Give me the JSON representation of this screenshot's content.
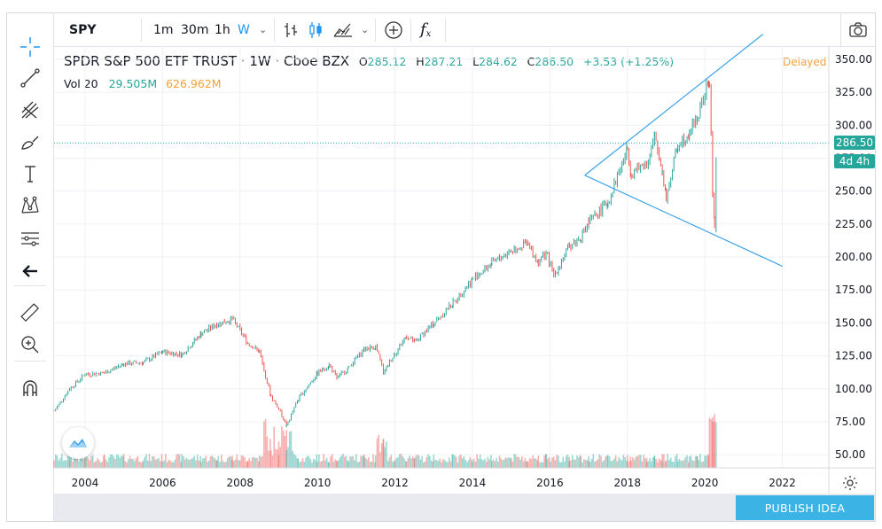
{
  "toolbar": {
    "symbol": "SPY",
    "intervals": [
      "1m",
      "30m",
      "1h",
      "W"
    ],
    "active_interval": "W",
    "fx_label": "f"
  },
  "legend": {
    "name": "SPDR S&P 500 ETF TRUST",
    "interval": "1W",
    "exchange": "Cboe BZX",
    "o_label": "O",
    "o_val": "285.12",
    "h_label": "H",
    "h_val": "287.21",
    "l_label": "L",
    "l_val": "284.62",
    "c_label": "C",
    "c_val": "286.50",
    "change": "+3.53 (+1.25%)",
    "vol_label": "Vol 20",
    "vol_val1": "29.505M",
    "vol_val2": "626.962M",
    "delayed": "Delayed"
  },
  "price_tags": {
    "last_price": "286.50",
    "countdown": "4d 4h"
  },
  "publish_label": "PUBLISH IDEA",
  "colors": {
    "up": "#26a69a",
    "down": "#ef5350",
    "accent": "#2196f3",
    "trendline": "#3ba3e8",
    "delayed": "#f7a035"
  },
  "chart_data": {
    "type": "line",
    "ylim": [
      40,
      360
    ],
    "y_ticks": [
      50,
      75,
      100,
      125,
      150,
      175,
      200,
      225,
      250,
      275,
      300,
      325,
      350
    ],
    "y_tick_labels": [
      "50.00",
      "75.00",
      "100.00",
      "125.00",
      "150.00",
      "175.00",
      "200.00",
      "225.00",
      "250.00",
      "275.00",
      "300.00",
      "325.00",
      "350.00"
    ],
    "x_ticks": [
      2004,
      2006,
      2008,
      2010,
      2012,
      2014,
      2016,
      2018,
      2020,
      2022
    ],
    "xlim": [
      2003.2,
      2023.2
    ],
    "series": [
      {
        "x": [
          2003.2,
          2003.6,
          2004.0,
          2004.5,
          2005.0,
          2005.5,
          2006.0,
          2006.5,
          2007.0,
          2007.4,
          2007.8,
          2008.2,
          2008.5,
          2008.8,
          2009.0,
          2009.2,
          2009.5,
          2010.0,
          2010.3,
          2010.5,
          2010.8,
          2011.2,
          2011.5,
          2011.7,
          2012.0,
          2012.3,
          2012.5,
          2013.0,
          2013.5,
          2014.0,
          2014.5,
          2015.0,
          2015.4,
          2015.7,
          2015.9,
          2016.1,
          2016.5,
          2016.8,
          2017.0,
          2017.5,
          2018.0,
          2018.1,
          2018.5,
          2018.7,
          2018.9,
          2019.0,
          2019.3,
          2019.6,
          2019.8,
          2020.1,
          2020.12,
          2020.2,
          2020.25,
          2020.3
        ],
        "close": [
          83,
          100,
          111,
          112,
          119,
          120,
          128,
          126,
          142,
          149,
          153,
          135,
          128,
          94,
          85,
          72,
          92,
          112,
          118,
          108,
          116,
          130,
          132,
          113,
          127,
          140,
          135,
          150,
          165,
          183,
          195,
          205,
          210,
          196,
          203,
          186,
          208,
          215,
          226,
          242,
          282,
          263,
          272,
          290,
          266,
          245,
          285,
          295,
          305,
          333,
          330,
          250,
          223,
          286
        ]
      }
    ],
    "volume_peak_note": "volume bars along bottom",
    "trendlines": [
      {
        "from": [
          2016.9,
          262
        ],
        "to": [
          2021.5,
          369
        ]
      },
      {
        "from": [
          2016.9,
          262
        ],
        "to": [
          2022.0,
          193
        ]
      }
    ],
    "last_price_line": 286.5
  }
}
